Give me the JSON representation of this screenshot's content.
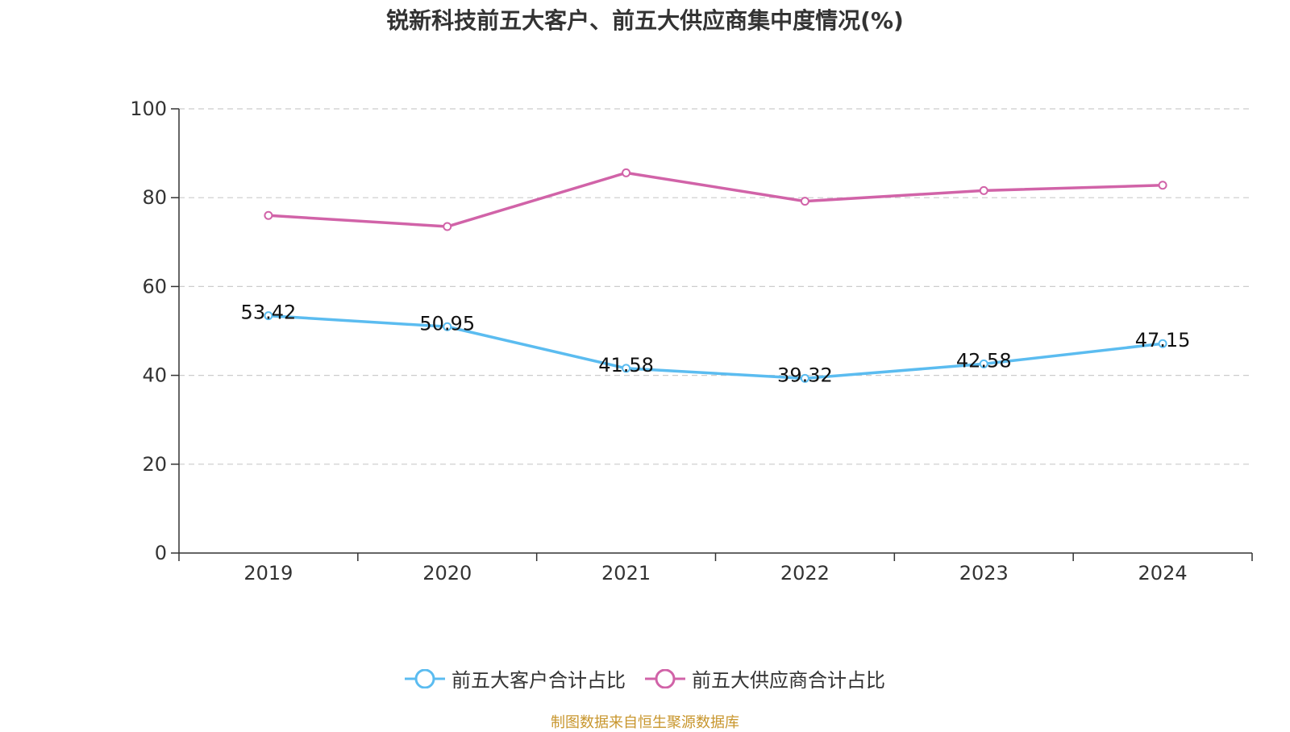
{
  "title": "锐新科技前五大客户、前五大供应商集中度情况(%)",
  "source": "制图数据来自恒生聚源数据库",
  "colors": {
    "customers": "#5bbcf0",
    "suppliers": "#d163a8",
    "axis": "#333333",
    "grid": "#cccccc",
    "tick_text": "#333333"
  },
  "chart_data": {
    "type": "line",
    "title": "锐新科技前五大客户、前五大供应商集中度情况(%)",
    "xlabel": "",
    "ylabel": "",
    "categories": [
      "2019",
      "2020",
      "2021",
      "2022",
      "2023",
      "2024"
    ],
    "ylim": [
      0,
      100
    ],
    "yticks": [
      0,
      20,
      40,
      60,
      80,
      100
    ],
    "grid": true,
    "legend_position": "bottom",
    "series": [
      {
        "name": "前五大客户合计占比",
        "values": [
          53.42,
          50.95,
          41.58,
          39.32,
          42.58,
          47.15
        ],
        "labels": [
          "53.42",
          "50.95",
          "41.58",
          "39.32",
          "42.58",
          "47.15"
        ],
        "show_labels": true
      },
      {
        "name": "前五大供应商合计占比",
        "values": [
          76.0,
          73.5,
          85.6,
          79.2,
          81.6,
          82.8
        ],
        "show_labels": false
      }
    ]
  }
}
